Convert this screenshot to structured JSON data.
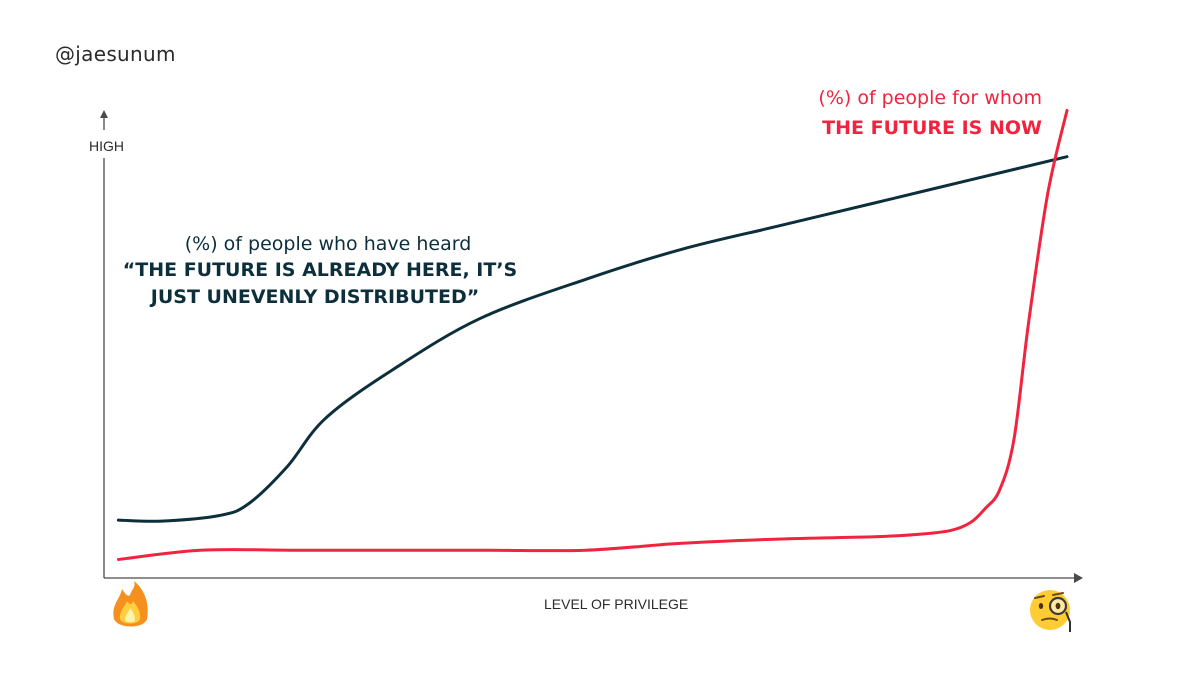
{
  "handle": "@jaesunum",
  "chart_data": {
    "type": "line",
    "ylabel": "HIGH",
    "xlabel": "LEVEL OF PRIVILEGE",
    "x_start_icon": "fire-emoji",
    "x_end_icon": "monocle-face-emoji",
    "xlim": [
      0,
      100
    ],
    "ylim": [
      0,
      100
    ],
    "series": [
      {
        "name_lines": [
          "(%) of people who have heard",
          "“THE FUTURE IS ALREADY HERE, IT’S",
          "JUST UNEVENLY DISTRIBUTED”"
        ],
        "color": "#0d2f3c",
        "x": [
          1.5,
          6,
          12,
          15,
          19,
          23,
          30,
          39,
          50,
          60,
          70,
          80,
          90,
          100
        ],
        "y": [
          12.5,
          12.3,
          13.5,
          16,
          24,
          34.5,
          45,
          56,
          64.5,
          71,
          76,
          81,
          86,
          91
        ]
      },
      {
        "name_lines": [
          "(%) of people for whom",
          "THE FUTURE IS NOW"
        ],
        "color": "#f0243e",
        "x": [
          1.5,
          10,
          20,
          30,
          40,
          50,
          60,
          70,
          80,
          85,
          88,
          90,
          91.5,
          93,
          94.5,
          96,
          98,
          100
        ],
        "y": [
          4,
          6,
          6,
          6,
          6,
          6,
          7.5,
          8.4,
          8.9,
          9.5,
          10.3,
          12,
          15,
          19,
          30,
          55,
          83,
          101
        ]
      }
    ]
  }
}
